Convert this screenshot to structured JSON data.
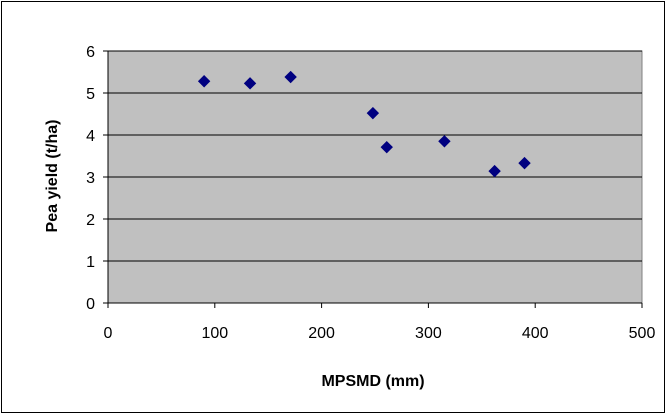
{
  "chart_data": {
    "type": "scatter",
    "title": "",
    "xlabel": "MPSMD (mm)",
    "ylabel": "Pea yield (t/ha)",
    "xlim": [
      0,
      500
    ],
    "ylim": [
      0,
      6
    ],
    "x_ticks": [
      "0",
      "100",
      "200",
      "300",
      "400",
      "500"
    ],
    "y_ticks": [
      "0",
      "1",
      "2",
      "3",
      "4",
      "5",
      "6"
    ],
    "grid": "horizontal",
    "legend": "none",
    "plot_background": "#c0c0c0",
    "marker_color": "#000080",
    "marker": "diamond",
    "series": [
      {
        "x": [
          90,
          133,
          171,
          248,
          261,
          315,
          362,
          390
        ],
        "y": [
          5.28,
          5.23,
          5.38,
          4.52,
          3.71,
          3.85,
          3.14,
          3.33
        ]
      }
    ]
  }
}
